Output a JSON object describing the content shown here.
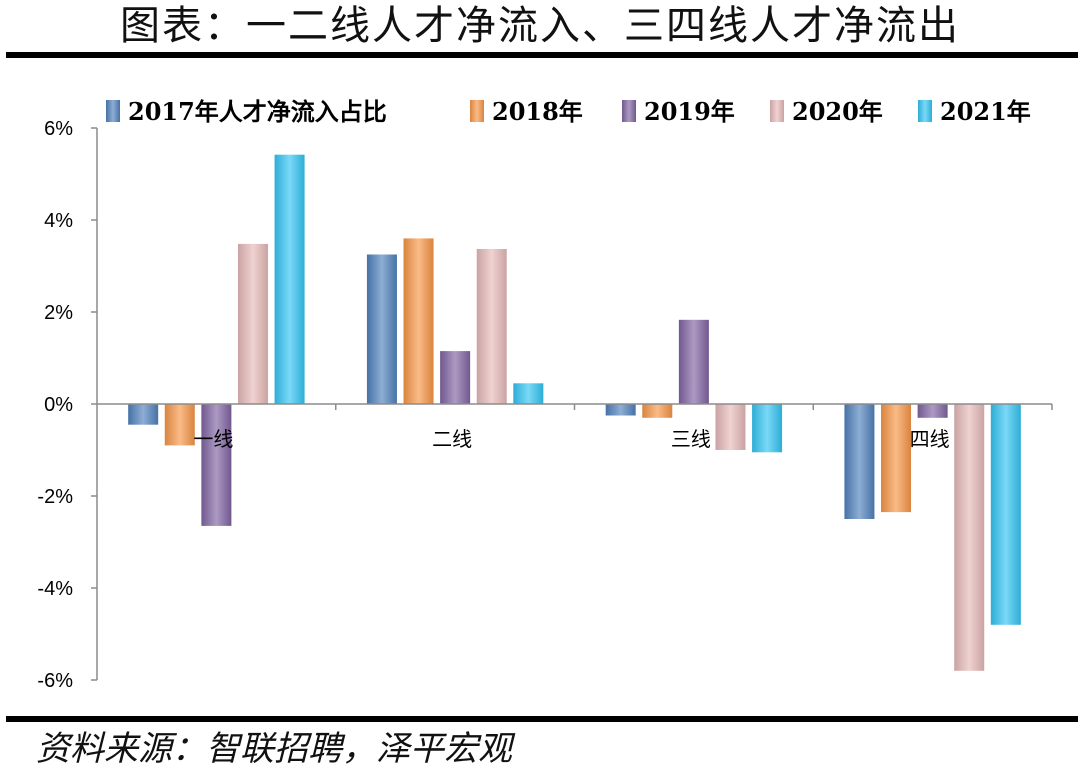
{
  "title": "图表：一二线人才净流入、三四线人才净流出",
  "source": "资料来源：智联招聘，泽平宏观",
  "chart_data": {
    "type": "bar",
    "categories": [
      "一线",
      "二线",
      "三线",
      "四线"
    ],
    "series": [
      {
        "name": "2017年人才净流入占比",
        "color": "#4f81bd",
        "values": [
          -0.45,
          3.25,
          -0.25,
          -2.5
        ]
      },
      {
        "name": "2018年",
        "color": "#f79646",
        "values": [
          -0.9,
          3.6,
          -0.3,
          -2.35
        ]
      },
      {
        "name": "2019年",
        "color": "#8064a2",
        "values": [
          -2.65,
          1.15,
          1.83,
          -0.3
        ]
      },
      {
        "name": "2020年",
        "color": "#e6b9b8",
        "values": [
          3.48,
          3.37,
          -1.0,
          -5.8
        ]
      },
      {
        "name": "2021年",
        "color": "#33c5f3",
        "values": [
          5.42,
          0.45,
          -1.05,
          -4.8
        ]
      }
    ],
    "ylim": [
      -6,
      6
    ],
    "yticks": [
      6,
      4,
      2,
      0,
      -2,
      -4,
      -6
    ],
    "ytick_labels": [
      "6%",
      "4%",
      "2%",
      "0%",
      "-2%",
      "-4%",
      "-6%"
    ],
    "xlabel": "",
    "ylabel": "",
    "legend_position": "top"
  }
}
